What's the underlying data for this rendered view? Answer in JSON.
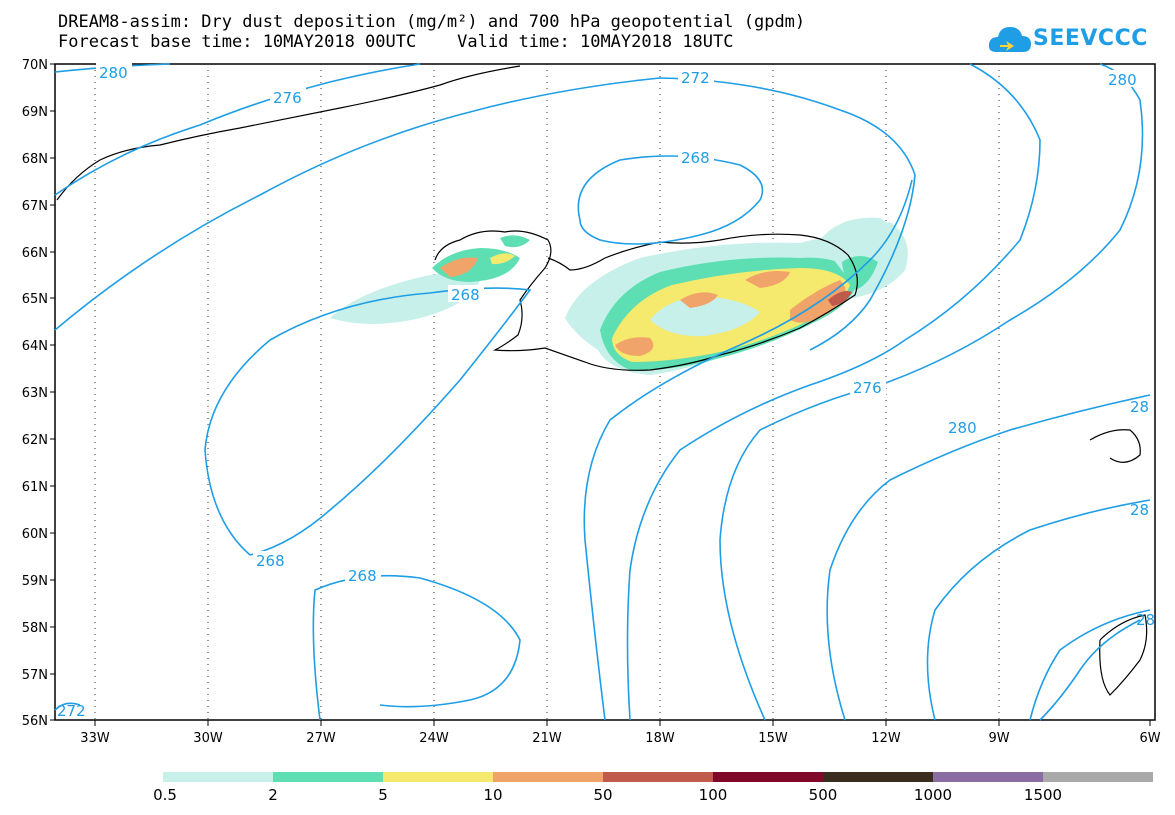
{
  "title": {
    "line1": "DREAM8-assim: Dry dust deposition (mg/m²) and 700 hPa geopotential (gpdm)",
    "line2": "Forecast base time: 10MAY2018 00UTC    Valid time: 10MAY2018 18UTC"
  },
  "logo": {
    "text": "SEEVCCC",
    "icon": "cloud-icon"
  },
  "map": {
    "lat_labels": [
      "70N",
      "69N",
      "68N",
      "67N",
      "66N",
      "65N",
      "64N",
      "63N",
      "62N",
      "61N",
      "60N",
      "59N",
      "58N",
      "57N",
      "56N"
    ],
    "lon_labels": [
      "33W",
      "30W",
      "27W",
      "24W",
      "21W",
      "18W",
      "15W",
      "12W",
      "9W",
      "6W"
    ],
    "contour_labels": [
      "280",
      "276",
      "272",
      "268",
      "268",
      "268",
      "268",
      "276",
      "280",
      "28",
      "28",
      "28",
      "272",
      "280"
    ],
    "contour_color": "#1f9ee6"
  },
  "legend": {
    "labels": [
      "0.5",
      "2",
      "5",
      "10",
      "50",
      "100",
      "500",
      "1000",
      "1500"
    ],
    "colors": [
      "#c7f0ea",
      "#5ddfb3",
      "#f5e96e",
      "#f0a46a",
      "#c05a4a",
      "#80082a",
      "#3b2c20",
      "#8a6da3",
      "#a9a9a9"
    ]
  }
}
